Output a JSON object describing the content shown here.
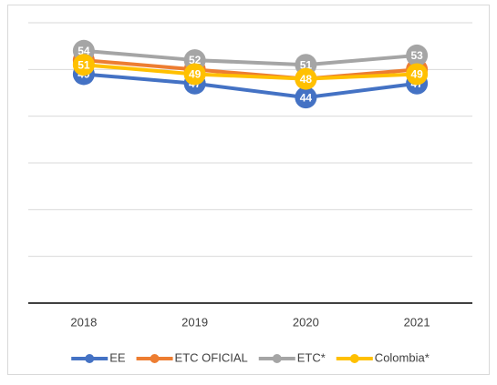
{
  "chart_data": {
    "type": "line",
    "categories": [
      "2018",
      "2019",
      "2020",
      "2021"
    ],
    "series": [
      {
        "name": "EE",
        "color": "#4472c4",
        "values": [
          49,
          47,
          44,
          47
        ]
      },
      {
        "name": "ETC OFICIAL",
        "color": "#ed7d31",
        "values": [
          52,
          50,
          48,
          50
        ]
      },
      {
        "name": "ETC*",
        "color": "#a5a5a5",
        "values": [
          54,
          52,
          51,
          53
        ]
      },
      {
        "name": "Colombia*",
        "color": "#ffc000",
        "values": [
          51,
          49,
          48,
          49
        ]
      }
    ],
    "ylim": [
      0,
      60
    ],
    "yticks": [
      0,
      10,
      20,
      30,
      40,
      50,
      60
    ],
    "grid": true,
    "legend": "bottom"
  }
}
